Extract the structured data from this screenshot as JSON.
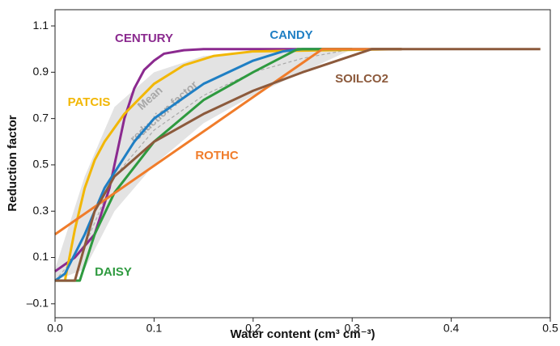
{
  "chart_data": {
    "type": "line",
    "xlabel": "Water content (cm³ cm⁻³)",
    "ylabel": "Reduction factor",
    "xlim": [
      0,
      0.5
    ],
    "ylim": [
      -0.16,
      1.17
    ],
    "xticks": [
      {
        "value": 0,
        "label": "0.0"
      },
      0.1,
      0.2,
      0.3,
      0.4,
      0.5
    ],
    "yticks": [
      {
        "value": -0.1,
        "label": "–0.1"
      },
      0.1,
      0.3,
      0.5,
      0.7,
      0.9,
      1.1
    ],
    "annotations": [
      "Mean",
      "reduction factor"
    ],
    "band": {
      "color": "#e3e3e3",
      "x": [
        0,
        0.03,
        0.06,
        0.1,
        0.15,
        0.2,
        0.25,
        0.3
      ],
      "upper": [
        0.05,
        0.45,
        0.75,
        0.9,
        0.97,
        0.99,
        1.0,
        1.0
      ],
      "lower": [
        0,
        0.05,
        0.3,
        0.5,
        0.68,
        0.8,
        0.9,
        1.0
      ]
    },
    "mean": {
      "color": "#aaaaaa",
      "x": [
        0,
        0.03,
        0.06,
        0.1,
        0.15,
        0.2,
        0.25,
        0.3
      ],
      "values": [
        0,
        0.15,
        0.45,
        0.65,
        0.8,
        0.9,
        0.96,
        1.0
      ]
    },
    "series": [
      {
        "name": "CENTURY",
        "color": "#8b2a8f",
        "x": [
          0,
          0.02,
          0.04,
          0.055,
          0.07,
          0.08,
          0.09,
          0.1,
          0.11,
          0.13,
          0.15,
          0.3
        ],
        "values": [
          0.04,
          0.1,
          0.2,
          0.4,
          0.7,
          0.83,
          0.91,
          0.95,
          0.98,
          0.995,
          1.0,
          1.0
        ]
      },
      {
        "name": "PATCIS",
        "color": "#f2b705",
        "x": [
          0.01,
          0.02,
          0.03,
          0.04,
          0.05,
          0.07,
          0.1,
          0.13,
          0.16,
          0.2,
          0.35
        ],
        "values": [
          0,
          0.22,
          0.4,
          0.52,
          0.6,
          0.72,
          0.85,
          0.93,
          0.97,
          0.99,
          1.0
        ]
      },
      {
        "name": "CANDY",
        "color": "#1f7fc4",
        "x": [
          0,
          0.01,
          0.03,
          0.05,
          0.08,
          0.1,
          0.15,
          0.2,
          0.23,
          0.25,
          0.35
        ],
        "values": [
          0,
          0.03,
          0.2,
          0.4,
          0.6,
          0.7,
          0.85,
          0.95,
          0.99,
          1.0,
          1.0
        ]
      },
      {
        "name": "DAISY",
        "color": "#2e9a3f",
        "x": [
          0,
          0.025,
          0.04,
          0.06,
          0.1,
          0.15,
          0.2,
          0.245,
          0.3
        ],
        "values": [
          0,
          0,
          0.2,
          0.38,
          0.6,
          0.78,
          0.9,
          1.0,
          1.0
        ]
      },
      {
        "name": "ROTHC",
        "color": "#f07c2a",
        "x": [
          0,
          0.27,
          0.35
        ],
        "values": [
          0.2,
          1.0,
          1.0
        ]
      },
      {
        "name": "SOILCO2",
        "color": "#8c5a3c",
        "x": [
          0,
          0.02,
          0.04,
          0.06,
          0.1,
          0.15,
          0.2,
          0.25,
          0.32,
          0.49
        ],
        "values": [
          0,
          0,
          0.3,
          0.45,
          0.6,
          0.72,
          0.82,
          0.9,
          1.0,
          1.0
        ]
      }
    ]
  }
}
